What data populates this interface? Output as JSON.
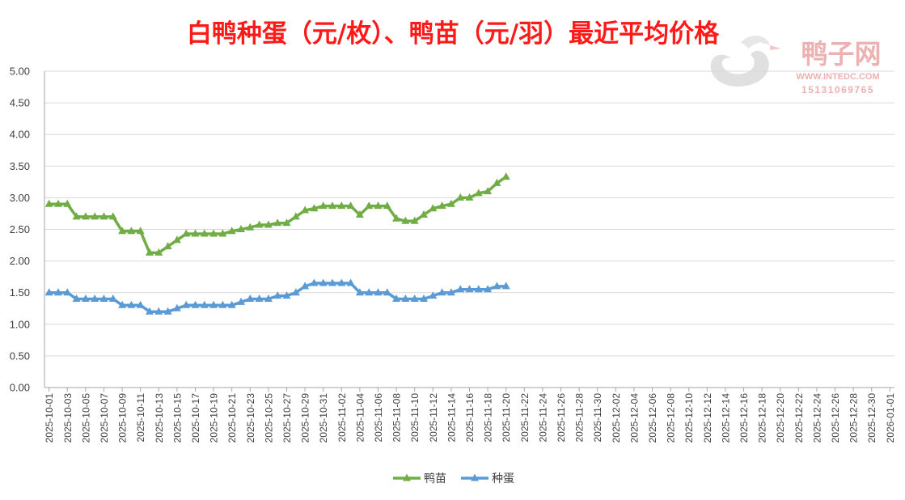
{
  "chart_data": {
    "type": "line",
    "title": "白鸭种蛋（元/枚）、鸭苗（元/羽）最近平均价格",
    "ylim": [
      0,
      5
    ],
    "yticks": [
      "5.00",
      "4.50",
      "4.00",
      "3.50",
      "3.00",
      "2.50",
      "2.00",
      "1.50",
      "1.00",
      "0.50",
      "0.00"
    ],
    "x_start": "2025-10-01",
    "x_end": "2026-01-02",
    "xtick_labels": [
      "2025-10-01",
      "2025-10-03",
      "2025-10-05",
      "2025-10-07",
      "2025-10-09",
      "2025-10-11",
      "2025-10-13",
      "2025-10-15",
      "2025-10-17",
      "2025-10-19",
      "2025-10-21",
      "2025-10-23",
      "2025-10-25",
      "2025-10-27",
      "2025-10-29",
      "2025-10-31",
      "2025-11-02",
      "2025-11-04",
      "2025-11-06",
      "2025-11-08",
      "2025-11-10",
      "2025-11-12",
      "2025-11-14",
      "2025-11-16",
      "2025-11-18",
      "2025-11-20",
      "2025-11-22",
      "2025-11-24",
      "2025-11-26",
      "2025-11-28",
      "2025-11-30",
      "2025-12-02",
      "2025-12-04",
      "2025-12-06",
      "2025-12-08",
      "2025-12-10",
      "2025-12-12",
      "2025-12-14",
      "2025-12-16",
      "2025-12-18",
      "2025-12-20",
      "2025-12-22",
      "2025-12-24",
      "2025-12-26",
      "2025-12-28",
      "2025-12-30",
      "2026-01-01"
    ],
    "x": [
      "2025-10-01",
      "2025-10-02",
      "2025-10-03",
      "2025-10-04",
      "2025-10-05",
      "2025-10-06",
      "2025-10-07",
      "2025-10-08",
      "2025-10-09",
      "2025-10-10",
      "2025-10-11",
      "2025-10-12",
      "2025-10-13",
      "2025-10-14",
      "2025-10-15",
      "2025-10-16",
      "2025-10-17",
      "2025-10-18",
      "2025-10-19",
      "2025-10-20",
      "2025-10-21",
      "2025-10-22",
      "2025-10-23",
      "2025-10-24",
      "2025-10-25",
      "2025-10-26",
      "2025-10-27",
      "2025-10-28",
      "2025-10-29",
      "2025-10-30",
      "2025-10-31",
      "2025-11-01",
      "2025-11-02",
      "2025-11-03",
      "2025-11-04",
      "2025-11-05",
      "2025-11-06",
      "2025-11-07",
      "2025-11-08",
      "2025-11-09",
      "2025-11-10",
      "2025-11-11",
      "2025-11-12",
      "2025-11-13",
      "2025-11-14",
      "2025-11-15",
      "2025-11-16",
      "2025-11-17",
      "2025-11-18",
      "2025-11-19",
      "2025-11-20"
    ],
    "series": [
      {
        "name": "鸭苗",
        "color": "#70ad47",
        "values": [
          2.9,
          2.9,
          2.9,
          2.7,
          2.7,
          2.7,
          2.7,
          2.7,
          2.47,
          2.47,
          2.47,
          2.13,
          2.13,
          2.23,
          2.33,
          2.43,
          2.43,
          2.43,
          2.43,
          2.43,
          2.47,
          2.5,
          2.53,
          2.57,
          2.57,
          2.6,
          2.6,
          2.7,
          2.8,
          2.83,
          2.87,
          2.87,
          2.87,
          2.87,
          2.73,
          2.87,
          2.87,
          2.87,
          2.67,
          2.63,
          2.63,
          2.73,
          2.83,
          2.87,
          2.9,
          3.0,
          3.0,
          3.07,
          3.1,
          3.23,
          3.33
        ]
      },
      {
        "name": "种蛋",
        "color": "#5b9bd5",
        "values": [
          1.5,
          1.5,
          1.5,
          1.4,
          1.4,
          1.4,
          1.4,
          1.4,
          1.3,
          1.3,
          1.3,
          1.2,
          1.2,
          1.2,
          1.25,
          1.3,
          1.3,
          1.3,
          1.3,
          1.3,
          1.3,
          1.35,
          1.4,
          1.4,
          1.4,
          1.45,
          1.45,
          1.5,
          1.6,
          1.65,
          1.65,
          1.65,
          1.65,
          1.65,
          1.5,
          1.5,
          1.5,
          1.5,
          1.4,
          1.4,
          1.4,
          1.4,
          1.45,
          1.5,
          1.5,
          1.55,
          1.55,
          1.55,
          1.55,
          1.6,
          1.6
        ]
      }
    ],
    "grid": "horizontal",
    "legend_position": "bottom"
  },
  "watermark": {
    "brand": "鸭子网",
    "site": "WWW.INTEDC.COM",
    "phone": "15131069765"
  }
}
